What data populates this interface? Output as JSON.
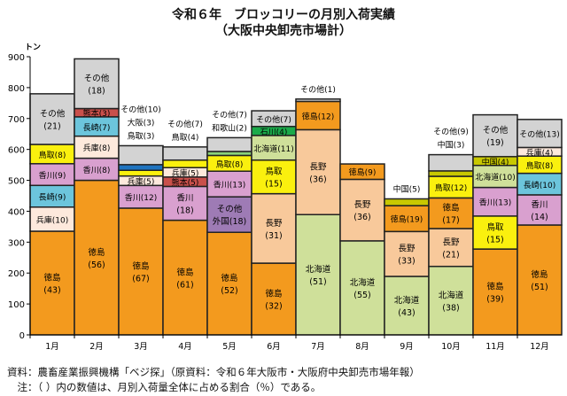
{
  "chart_data": {
    "type": "bar",
    "stacked": true,
    "title": "令和６年　ブロッコリーの月別入荷実績",
    "subtitle": "（大阪中央卸売市場計）",
    "ylabel": "トン",
    "ylim": [
      0,
      900
    ],
    "yticks": [
      0,
      100,
      200,
      300,
      400,
      500,
      600,
      700,
      800,
      900
    ],
    "categories": [
      "1月",
      "2月",
      "3月",
      "4月",
      "5月",
      "6月",
      "7月",
      "8月",
      "9月",
      "10月",
      "11月",
      "12月"
    ],
    "totals": [
      780,
      893,
      612,
      608,
      638,
      725,
      763,
      553,
      440,
      583,
      712,
      697
    ],
    "colors": {
      "徳島": "#F39A1E",
      "兵庫": "#FDE9DC",
      "長崎": "#6CC5DC",
      "香川": "#D9A0CF",
      "鳥取": "#FAF00E",
      "その他": "#D3D3D3",
      "熊本": "#C9504B",
      "大阪": "#1E73BE",
      "和歌山": "#8BD37A",
      "その他外国": "#9E7BB5",
      "長野": "#F8C99B",
      "北海道": "#CFE09A",
      "石川": "#1BAA4A",
      "中国": "#C8C800"
    },
    "segments": [
      [
        {
          "n": "徳島",
          "p": 43
        },
        {
          "n": "兵庫",
          "p": 10
        },
        {
          "n": "長崎",
          "p": 9
        },
        {
          "n": "香川",
          "p": 9
        },
        {
          "n": "鳥取",
          "p": 8
        },
        {
          "n": "その他",
          "p": 21
        }
      ],
      [
        {
          "n": "徳島",
          "p": 56
        },
        {
          "n": "香川",
          "p": 8
        },
        {
          "n": "兵庫",
          "p": 8
        },
        {
          "n": "長崎",
          "p": 7
        },
        {
          "n": "熊本",
          "p": 3
        },
        {
          "n": "その他",
          "p": 18
        }
      ],
      [
        {
          "n": "徳島",
          "p": 67
        },
        {
          "n": "香川",
          "p": 12
        },
        {
          "n": "兵庫",
          "p": 5
        },
        {
          "n": "鳥取",
          "p": 3,
          "out": true
        },
        {
          "n": "大阪",
          "p": 3,
          "out": true
        },
        {
          "n": "その他",
          "p": 10,
          "out": true
        }
      ],
      [
        {
          "n": "徳島",
          "p": 61
        },
        {
          "n": "香川",
          "p": 18
        },
        {
          "n": "熊本",
          "p": 5
        },
        {
          "n": "兵庫",
          "p": 5
        },
        {
          "n": "鳥取",
          "p": 4,
          "out": true
        },
        {
          "n": "その他",
          "p": 7,
          "out": true
        }
      ],
      [
        {
          "n": "徳島",
          "p": 52
        },
        {
          "n": "その他外国",
          "p": 18,
          "label": "その他外国"
        },
        {
          "n": "香川",
          "p": 13
        },
        {
          "n": "鳥取",
          "p": 8
        },
        {
          "n": "和歌山",
          "p": 2,
          "out": true
        },
        {
          "n": "その他",
          "p": 7,
          "out": true
        }
      ],
      [
        {
          "n": "徳島",
          "p": 32
        },
        {
          "n": "長野",
          "p": 31
        },
        {
          "n": "鳥取",
          "p": 15
        },
        {
          "n": "北海道",
          "p": 11
        },
        {
          "n": "石川",
          "p": 4
        },
        {
          "n": "その他",
          "p": 7
        }
      ],
      [
        {
          "n": "北海道",
          "p": 51
        },
        {
          "n": "長野",
          "p": 36
        },
        {
          "n": "徳島",
          "p": 12
        },
        {
          "n": "その他",
          "p": 1,
          "out": true
        }
      ],
      [
        {
          "n": "北海道",
          "p": 55
        },
        {
          "n": "長野",
          "p": 36
        },
        {
          "n": "徳島",
          "p": 9
        }
      ],
      [
        {
          "n": "北海道",
          "p": 43
        },
        {
          "n": "長野",
          "p": 33
        },
        {
          "n": "徳島",
          "p": 19
        },
        {
          "n": "中国",
          "p": 5,
          "out": true
        }
      ],
      [
        {
          "n": "北海道",
          "p": 38
        },
        {
          "n": "長野",
          "p": 21
        },
        {
          "n": "徳島",
          "p": 17
        },
        {
          "n": "鳥取",
          "p": 12
        },
        {
          "n": "中国",
          "p": 3,
          "out": true
        },
        {
          "n": "その他",
          "p": 9,
          "out": true
        }
      ],
      [
        {
          "n": "徳島",
          "p": 39
        },
        {
          "n": "鳥取",
          "p": 15
        },
        {
          "n": "香川",
          "p": 13
        },
        {
          "n": "北海道",
          "p": 10
        },
        {
          "n": "中国",
          "p": 4
        },
        {
          "n": "その他",
          "p": 19
        }
      ],
      [
        {
          "n": "徳島",
          "p": 51
        },
        {
          "n": "香川",
          "p": 14
        },
        {
          "n": "長崎",
          "p": 10
        },
        {
          "n": "鳥取",
          "p": 8
        },
        {
          "n": "兵庫",
          "p": 4
        },
        {
          "n": "その他",
          "p": 13
        }
      ]
    ]
  },
  "notes": {
    "source": "資料：農畜産業振興機構「ベジ探」（原資料：令和６年大阪市・大阪府中央卸売市場年報）",
    "note": "　注：（ ）内の数値は、月別入荷量全体に占める割合（％）である。"
  }
}
